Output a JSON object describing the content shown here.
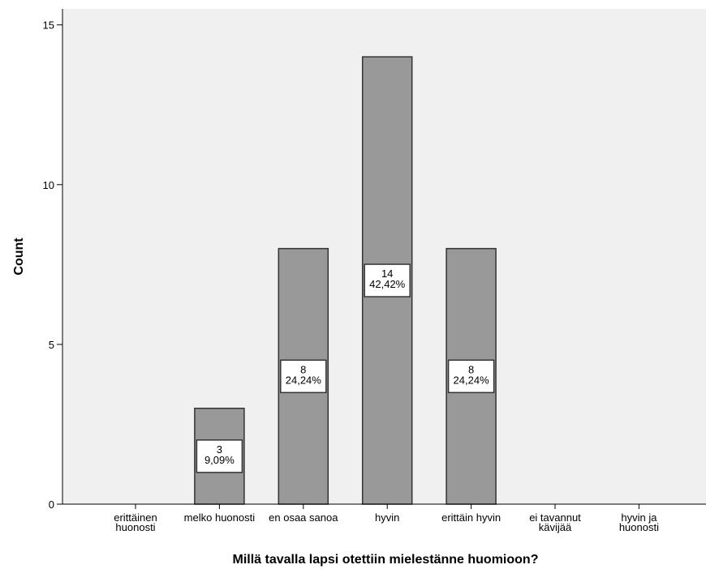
{
  "chart_data": {
    "type": "bar",
    "title": "",
    "xlabel": "Millä tavalla lapsi otettiin mielestänne huomioon?",
    "ylabel": "Count",
    "ylim": [
      0,
      15.5
    ],
    "yticks": [
      0,
      5,
      10,
      15
    ],
    "grid": false,
    "categories": [
      [
        "erittäinen",
        "huonosti"
      ],
      [
        "melko huonosti"
      ],
      [
        "en osaa sanoa"
      ],
      [
        "hyvin"
      ],
      [
        "erittäin hyvin"
      ],
      [
        "ei tavannut",
        "kävijää"
      ],
      [
        "hyvin ja",
        "huonosti"
      ]
    ],
    "values": [
      0,
      3,
      8,
      14,
      8,
      0,
      0
    ],
    "labels": [
      null,
      [
        "3",
        "9,09%"
      ],
      [
        "8",
        "24,24%"
      ],
      [
        "14",
        "42,42%"
      ],
      [
        "8",
        "24,24%"
      ],
      null,
      null
    ],
    "colors": {
      "plot_background": "#f0f0f0",
      "bar_fill": "#999999",
      "bar_stroke": "#333333",
      "label_box_fill": "#ffffff",
      "axis": "#000000"
    }
  }
}
